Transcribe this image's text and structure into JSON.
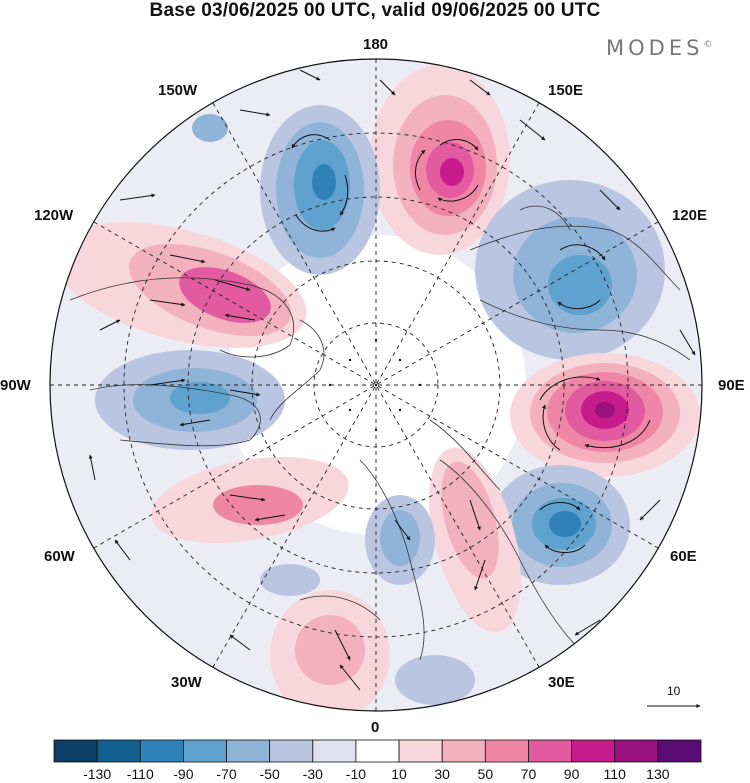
{
  "title": "Base 03/06/2025 00 UTC, valid 09/06/2025 00 UTC",
  "brand": "MODES",
  "brand_mark": "©",
  "longitude_labels": {
    "lon_180": "180",
    "lon_150E": "150E",
    "lon_120E": "120E",
    "lon_90E": "90E",
    "lon_60E": "60E",
    "lon_30E": "30E",
    "lon_0": "0",
    "lon_30W": "30W",
    "lon_60W": "60W",
    "lon_90W": "90W",
    "lon_120W": "120W",
    "lon_150W": "150W"
  },
  "vector_reference_label": "10",
  "colorbar": {
    "colors": [
      "#0b3f66",
      "#135f91",
      "#2f82b8",
      "#5fa2cf",
      "#8fb4d8",
      "#bac6e1",
      "#e1e1ef",
      "#ffffff",
      "#f8d7dc",
      "#f3b0bd",
      "#ef86a6",
      "#e25a9f",
      "#c71b8b",
      "#98117d",
      "#5a0c74"
    ],
    "tick_labels": [
      "-130",
      "-110",
      "-90",
      "-70",
      "-50",
      "-30",
      "-10",
      "10",
      "30",
      "50",
      "70",
      "90",
      "110",
      "130"
    ]
  }
}
